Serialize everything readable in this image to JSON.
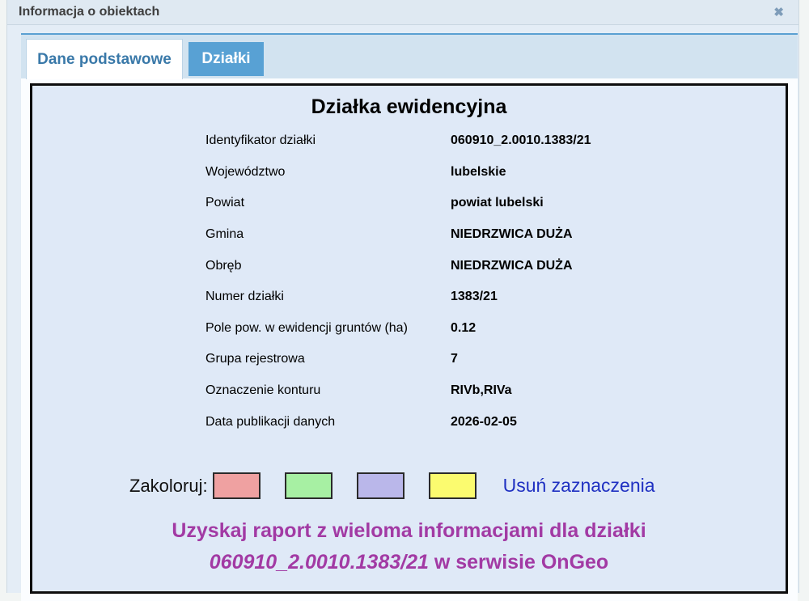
{
  "dialog": {
    "title": "Informacja o obiektach",
    "close_glyph": "✖"
  },
  "tabs": [
    {
      "label": "Dane podstawowe",
      "active": true
    },
    {
      "label": "Działki",
      "active": false
    }
  ],
  "panel": {
    "heading": "Działka ewidencyjna",
    "rows": [
      {
        "label": "Identyfikator działki",
        "value": "060910_2.0010.1383/21"
      },
      {
        "label": "Województwo",
        "value": "lubelskie"
      },
      {
        "label": "Powiat",
        "value": "powiat lubelski"
      },
      {
        "label": "Gmina",
        "value": "NIEDRZWICA DUŻA"
      },
      {
        "label": "Obręb",
        "value": "NIEDRZWICA DUŻA"
      },
      {
        "label": "Numer działki",
        "value": "1383/21"
      },
      {
        "label": "Pole pow. w ewidencji gruntów (ha)",
        "value": "0.12"
      },
      {
        "label": "Grupa rejestrowa",
        "value": "7"
      },
      {
        "label": "Oznaczenie konturu",
        "value": "RIVb,RIVa"
      },
      {
        "label": "Data publikacji danych",
        "value": "2026-02-05"
      }
    ],
    "colorize": {
      "label": "Zakoloruj:",
      "swatch_colors": [
        "#efa1a1",
        "#a7f0a3",
        "#bab7ea",
        "#fbfb6f"
      ],
      "clear_label": "Usuń zaznaczenia"
    },
    "report_link": {
      "line1": "Uzyskaj raport z wieloma informacjami dla działki",
      "line2_parcel": "060910_2.0010.1383/21",
      "line2_rest": " w serwisie OnGeo"
    }
  }
}
